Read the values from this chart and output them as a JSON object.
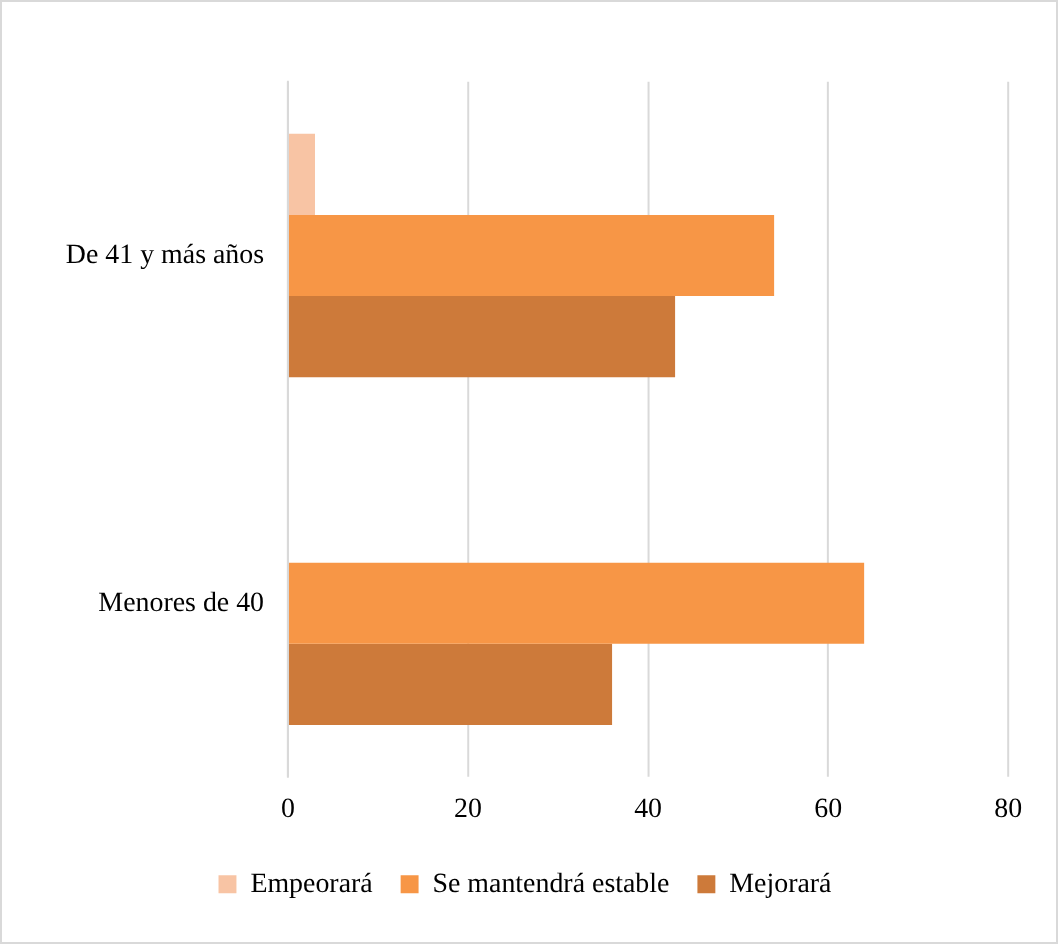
{
  "chart_data": {
    "type": "bar",
    "orientation": "horizontal",
    "categories": [
      "De 41 y más años",
      "Menores de 40"
    ],
    "series": [
      {
        "name": "Empeorará",
        "color": "#f8c4a4",
        "values": [
          3,
          0
        ]
      },
      {
        "name": "Se mantendrá estable",
        "color": "#f79646",
        "values": [
          54,
          64
        ]
      },
      {
        "name": "Mejorará",
        "color": "#cd7a3a",
        "values": [
          43,
          36
        ]
      }
    ],
    "xlim": [
      0,
      80
    ],
    "xticks": [
      0,
      20,
      40,
      60,
      80
    ],
    "grid": "x",
    "legend": "bottom"
  }
}
